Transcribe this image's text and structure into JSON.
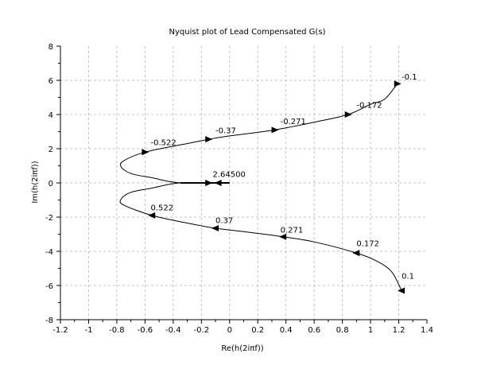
{
  "chart_data": {
    "type": "line",
    "title": "Nyquist plot of Lead Compensated G(s)",
    "xlabel": "Re(h(2iπf))",
    "ylabel": "Im(h(2iπf))",
    "xlim": [
      -1.2,
      1.4
    ],
    "ylim": [
      -8,
      8
    ],
    "xticks": [
      -1.2,
      -1.0,
      -0.8,
      -0.6,
      -0.4,
      -0.2,
      0.0,
      0.2,
      0.4,
      0.6,
      0.8,
      1.0,
      1.2,
      1.4
    ],
    "xtick_labels": [
      "-1.2",
      "-1",
      "-0.8",
      "-0.6",
      "-0.4",
      "-0.2",
      "0",
      "0.2",
      "0.4",
      "0.6",
      "0.8",
      "1",
      "1.2",
      "1.4"
    ],
    "yticks": [
      -8,
      -6,
      -4,
      -2,
      0,
      2,
      4,
      6,
      8
    ],
    "ytick_labels": [
      "-8",
      "-6",
      "-4",
      "-2",
      "0",
      "2",
      "4",
      "6",
      "8"
    ],
    "grid": true,
    "legend": "none",
    "line_color": "#000000",
    "series": [
      {
        "points": [
          [
            1.19,
            5.8
          ],
          [
            1.1,
            4.9
          ],
          [
            1.0,
            4.6
          ],
          [
            0.84,
            4.0
          ],
          [
            0.6,
            3.55
          ],
          [
            0.32,
            3.1
          ],
          [
            0.0,
            2.75
          ],
          [
            -0.15,
            2.55
          ],
          [
            -0.3,
            2.3
          ],
          [
            -0.6,
            1.8
          ],
          [
            -0.75,
            1.3
          ],
          [
            -0.77,
            0.95
          ],
          [
            -0.7,
            0.55
          ],
          [
            -0.55,
            0.3
          ],
          [
            -0.35,
            0.0
          ],
          [
            0.0,
            0.0
          ]
        ]
      },
      {
        "points": [
          [
            0.0,
            0.0
          ],
          [
            -0.35,
            0.0
          ],
          [
            -0.55,
            -0.3
          ],
          [
            -0.7,
            -0.55
          ],
          [
            -0.77,
            -0.95
          ],
          [
            -0.75,
            -1.3
          ],
          [
            -0.55,
            -1.9
          ],
          [
            -0.3,
            -2.35
          ],
          [
            -0.1,
            -2.65
          ],
          [
            0.1,
            -2.85
          ],
          [
            0.38,
            -3.15
          ],
          [
            0.6,
            -3.45
          ],
          [
            0.9,
            -4.1
          ],
          [
            1.05,
            -4.6
          ],
          [
            1.15,
            -5.2
          ],
          [
            1.22,
            -6.3
          ]
        ]
      }
    ],
    "arrows": [
      {
        "x": 0.84,
        "y": 4.0,
        "dir": "right"
      },
      {
        "x": 0.32,
        "y": 3.1,
        "dir": "right"
      },
      {
        "x": -0.15,
        "y": 2.55,
        "dir": "right"
      },
      {
        "x": -0.6,
        "y": 1.8,
        "dir": "right"
      },
      {
        "x": 1.19,
        "y": 5.8,
        "dir": "right"
      },
      {
        "x": -0.55,
        "y": -1.9,
        "dir": "left"
      },
      {
        "x": -0.1,
        "y": -2.65,
        "dir": "left"
      },
      {
        "x": 0.38,
        "y": -3.15,
        "dir": "left"
      },
      {
        "x": 0.9,
        "y": -4.1,
        "dir": "left"
      },
      {
        "x": 1.22,
        "y": -6.3,
        "dir": "left"
      },
      {
        "x": -0.15,
        "y": 0.0,
        "dir": "right"
      },
      {
        "x": -0.08,
        "y": 0.0,
        "dir": "left"
      }
    ],
    "annotations": [
      {
        "text": "-0.1",
        "x": 1.22,
        "y": 6.05
      },
      {
        "text": "-0.172",
        "x": 0.9,
        "y": 4.4
      },
      {
        "text": "-0.271",
        "x": 0.36,
        "y": 3.45
      },
      {
        "text": "-0.37",
        "x": -0.1,
        "y": 2.9
      },
      {
        "text": "-0.522",
        "x": -0.56,
        "y": 2.2
      },
      {
        "text": "2.64500",
        "x": -0.12,
        "y": 0.35
      },
      {
        "text": "0.522",
        "x": -0.56,
        "y": -1.6
      },
      {
        "text": "0.37",
        "x": -0.1,
        "y": -2.35
      },
      {
        "text": "0.271",
        "x": 0.36,
        "y": -2.9
      },
      {
        "text": "0.172",
        "x": 0.9,
        "y": -3.7
      },
      {
        "text": "0.1",
        "x": 1.22,
        "y": -5.6
      }
    ]
  }
}
